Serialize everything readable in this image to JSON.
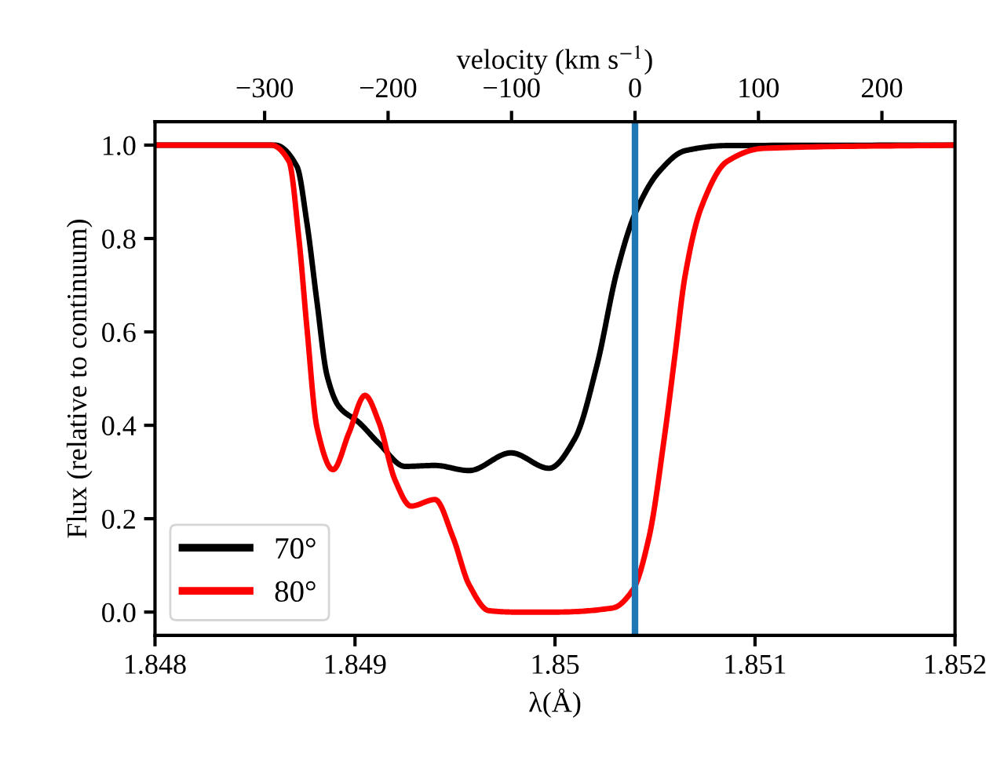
{
  "chart_data": {
    "type": "line",
    "xlabel": "λ(Å)",
    "ylabel": "Flux (relative to continuum)",
    "x2label": "velocity (km s$^{−1}$)",
    "xlim": [
      1.848,
      1.852
    ],
    "xticks": [
      1.848,
      1.849,
      1.85,
      1.851,
      1.852
    ],
    "ylim": [
      -0.05,
      1.05
    ],
    "yticks": [
      {
        "value": 0,
        "label": "0.0"
      },
      {
        "value": 0.2,
        "label": "0.2"
      },
      {
        "value": 0.4,
        "label": "0.4"
      },
      {
        "value": 0.6,
        "label": "0.6"
      },
      {
        "value": 0.8,
        "label": "0.8"
      },
      {
        "value": 1,
        "label": "1.0"
      }
    ],
    "x2lim": [
      -388.8,
      259.2
    ],
    "x2ticks": [
      {
        "value": -300,
        "label": "−300"
      },
      {
        "value": -200,
        "label": "−200"
      },
      {
        "value": -100,
        "label": "−100"
      },
      0,
      100,
      200
    ],
    "legend": "bottom left",
    "grid": false,
    "marker": "none",
    "line_style": "solid",
    "ref_lines": [
      {
        "axis": "x",
        "value": 1.8504,
        "color": "#1f77b4"
      }
    ],
    "series": [
      {
        "name": "70°",
        "color": "#000000",
        "x": [
          1.848,
          1.8486,
          1.84871,
          1.84876,
          1.84881,
          1.84886,
          1.84892,
          1.84902,
          1.84912,
          1.84925,
          1.8494,
          1.84957,
          1.84978,
          1.84997,
          1.8501,
          1.85021,
          1.85031,
          1.8504,
          1.85052,
          1.85065,
          1.85086,
          1.852
        ],
        "values": [
          1.0,
          1.0,
          0.954,
          0.832,
          0.664,
          0.507,
          0.44,
          0.406,
          0.361,
          0.312,
          0.314,
          0.303,
          0.341,
          0.308,
          0.372,
          0.529,
          0.73,
          0.853,
          0.943,
          0.988,
          0.999,
          1.0
        ]
      },
      {
        "name": "80°",
        "color": "#ff0000",
        "x": [
          1.848,
          1.84858,
          1.84867,
          1.84872,
          1.84876,
          1.84881,
          1.84889,
          1.84897,
          1.84905,
          1.84912,
          1.8492,
          1.84928,
          1.8494,
          1.84949,
          1.84957,
          1.84967,
          1.8498,
          1.85,
          1.85029,
          1.85039,
          1.85047,
          1.85055,
          1.8506,
          1.85065,
          1.85073,
          1.85086,
          1.85104,
          1.852
        ],
        "values": [
          1.0,
          1.0,
          0.965,
          0.798,
          0.607,
          0.395,
          0.305,
          0.384,
          0.464,
          0.406,
          0.283,
          0.227,
          0.241,
          0.16,
          0.059,
          0.003,
          0.0,
          0.0,
          0.009,
          0.048,
          0.16,
          0.384,
          0.551,
          0.719,
          0.865,
          0.965,
          0.993,
          1.0
        ]
      }
    ]
  }
}
